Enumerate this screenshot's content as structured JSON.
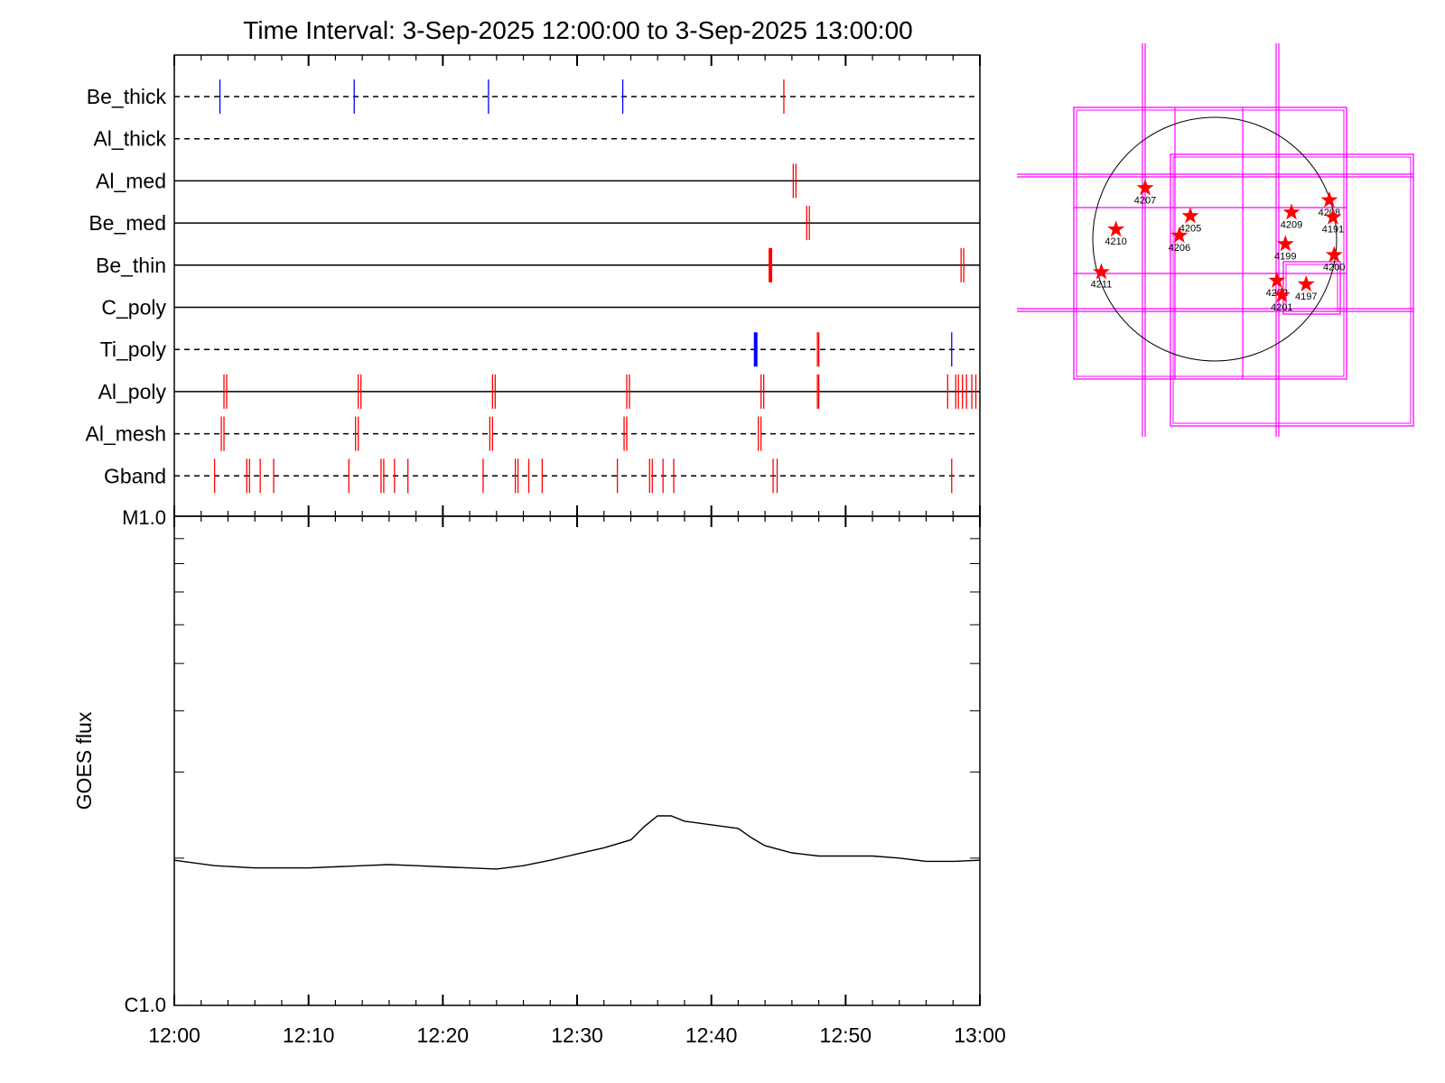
{
  "title": "Time Interval:  3-Sep-2025 12:00:00 to  3-Sep-2025 13:00:00",
  "colors": {
    "red": "#ff0000",
    "blue": "#0000ff",
    "magenta": "#ff00ff",
    "black": "#000000"
  },
  "chart_data": [
    {
      "type": "event_timeline",
      "x_range": [
        "12:00",
        "13:00"
      ],
      "rows": [
        {
          "label": "Be_thick",
          "line": "dashed",
          "events": [
            {
              "t": 3.4,
              "color": "blue"
            },
            {
              "t": 13.4,
              "color": "blue"
            },
            {
              "t": 23.4,
              "color": "blue"
            },
            {
              "t": 33.4,
              "color": "blue"
            },
            {
              "t": 45.4,
              "color": "red"
            }
          ]
        },
        {
          "label": "Al_thick",
          "line": "dashed",
          "events": []
        },
        {
          "label": "Al_med",
          "line": "solid",
          "events": [
            {
              "t": 46.1,
              "color": "red"
            },
            {
              "t": 46.3,
              "color": "red"
            }
          ]
        },
        {
          "label": "Be_med",
          "line": "solid",
          "events": [
            {
              "t": 47.1,
              "color": "red"
            },
            {
              "t": 47.3,
              "color": "red"
            }
          ]
        },
        {
          "label": "Be_thin",
          "line": "solid",
          "events": [
            {
              "t": 44.4,
              "color": "red",
              "bold": true
            },
            {
              "t": 58.6,
              "color": "red"
            },
            {
              "t": 58.8,
              "color": "red"
            }
          ]
        },
        {
          "label": "C_poly",
          "line": "solid",
          "events": []
        },
        {
          "label": "Ti_poly",
          "line": "dashed",
          "events": [
            {
              "t": 43.3,
              "color": "blue",
              "bold": true
            },
            {
              "t": 47.9,
              "color": "red"
            },
            {
              "t": 48.0,
              "color": "red"
            },
            {
              "t": 57.9,
              "color": "blue"
            }
          ]
        },
        {
          "label": "Al_poly",
          "line": "solid",
          "events": [
            {
              "t": 3.7,
              "color": "red"
            },
            {
              "t": 3.9,
              "color": "red"
            },
            {
              "t": 13.7,
              "color": "red"
            },
            {
              "t": 13.9,
              "color": "red"
            },
            {
              "t": 23.7,
              "color": "red"
            },
            {
              "t": 23.9,
              "color": "red"
            },
            {
              "t": 33.7,
              "color": "red"
            },
            {
              "t": 33.9,
              "color": "red"
            },
            {
              "t": 43.7,
              "color": "red"
            },
            {
              "t": 43.9,
              "color": "red"
            },
            {
              "t": 47.9,
              "color": "red"
            },
            {
              "t": 48.0,
              "color": "red"
            },
            {
              "t": 57.6,
              "color": "red"
            },
            {
              "t": 58.2,
              "color": "red"
            },
            {
              "t": 58.4,
              "color": "red"
            },
            {
              "t": 58.7,
              "color": "red"
            },
            {
              "t": 59.0,
              "color": "red"
            },
            {
              "t": 59.4,
              "color": "red"
            },
            {
              "t": 59.7,
              "color": "red"
            }
          ]
        },
        {
          "label": "Al_mesh",
          "line": "dashed",
          "events": [
            {
              "t": 3.5,
              "color": "red"
            },
            {
              "t": 3.7,
              "color": "red"
            },
            {
              "t": 13.5,
              "color": "red"
            },
            {
              "t": 13.7,
              "color": "red"
            },
            {
              "t": 23.5,
              "color": "red"
            },
            {
              "t": 23.7,
              "color": "red"
            },
            {
              "t": 33.5,
              "color": "red"
            },
            {
              "t": 33.7,
              "color": "red"
            },
            {
              "t": 43.5,
              "color": "red"
            },
            {
              "t": 43.7,
              "color": "red"
            }
          ]
        },
        {
          "label": "Gband",
          "line": "dashed",
          "events": [
            {
              "t": 3.0,
              "color": "red"
            },
            {
              "t": 5.4,
              "color": "red"
            },
            {
              "t": 5.6,
              "color": "red"
            },
            {
              "t": 6.4,
              "color": "red"
            },
            {
              "t": 7.4,
              "color": "red"
            },
            {
              "t": 13.0,
              "color": "red"
            },
            {
              "t": 15.4,
              "color": "red"
            },
            {
              "t": 15.6,
              "color": "red"
            },
            {
              "t": 16.4,
              "color": "red"
            },
            {
              "t": 17.4,
              "color": "red"
            },
            {
              "t": 23.0,
              "color": "red"
            },
            {
              "t": 25.4,
              "color": "red"
            },
            {
              "t": 25.6,
              "color": "red"
            },
            {
              "t": 26.4,
              "color": "red"
            },
            {
              "t": 27.4,
              "color": "red"
            },
            {
              "t": 33.0,
              "color": "red"
            },
            {
              "t": 35.4,
              "color": "red"
            },
            {
              "t": 35.6,
              "color": "red"
            },
            {
              "t": 36.4,
              "color": "red"
            },
            {
              "t": 37.2,
              "color": "red"
            },
            {
              "t": 44.6,
              "color": "red"
            },
            {
              "t": 44.9,
              "color": "red"
            },
            {
              "t": 57.9,
              "color": "red"
            }
          ]
        }
      ]
    },
    {
      "type": "line",
      "ylabel": "GOES flux",
      "scale": "log",
      "ylim": [
        "C1.0",
        "M1.0"
      ],
      "y_tick_labels": [
        "M1.0",
        "C1.0"
      ],
      "x_tick_labels": [
        "12:00",
        "12:10",
        "12:20",
        "12:30",
        "12:40",
        "12:50",
        "13:00"
      ],
      "x_minutes": [
        0,
        3,
        6,
        10,
        14,
        16,
        18,
        20,
        24,
        26,
        28,
        30,
        32,
        34,
        35,
        36,
        37,
        38,
        40,
        42,
        43,
        44,
        46,
        48,
        50,
        52,
        54,
        56,
        58,
        60
      ],
      "y_flux": [
        1.98e-06,
        1.93e-06,
        1.91e-06,
        1.91e-06,
        1.93e-06,
        1.94e-06,
        1.93e-06,
        1.92e-06,
        1.9e-06,
        1.93e-06,
        1.98e-06,
        2.04e-06,
        2.1e-06,
        2.18e-06,
        2.32e-06,
        2.44e-06,
        2.44e-06,
        2.38e-06,
        2.34e-06,
        2.3e-06,
        2.2e-06,
        2.12e-06,
        2.05e-06,
        2.02e-06,
        2.02e-06,
        2.02e-06,
        2e-06,
        1.97e-06,
        1.97e-06,
        1.98e-06
      ]
    },
    {
      "type": "solar_map",
      "regions": [
        {
          "id": "4207",
          "x": -0.57,
          "y": 0.42
        },
        {
          "id": "4210",
          "x": -0.81,
          "y": 0.08
        },
        {
          "id": "4205",
          "x": -0.2,
          "y": 0.19
        },
        {
          "id": "4206",
          "x": -0.29,
          "y": 0.03
        },
        {
          "id": "4211",
          "x": -0.93,
          "y": -0.27
        },
        {
          "id": "4209",
          "x": 0.63,
          "y": 0.22
        },
        {
          "id": "4208",
          "x": 0.94,
          "y": 0.32
        },
        {
          "id": "4191",
          "x": 0.97,
          "y": 0.18
        },
        {
          "id": "4199",
          "x": 0.58,
          "y": -0.04
        },
        {
          "id": "4200",
          "x": 0.98,
          "y": -0.13
        },
        {
          "id": "4202",
          "x": 0.51,
          "y": -0.34
        },
        {
          "id": "4197",
          "x": 0.75,
          "y": -0.37
        },
        {
          "id": "4201",
          "x": 0.55,
          "y": -0.46
        }
      ]
    }
  ]
}
